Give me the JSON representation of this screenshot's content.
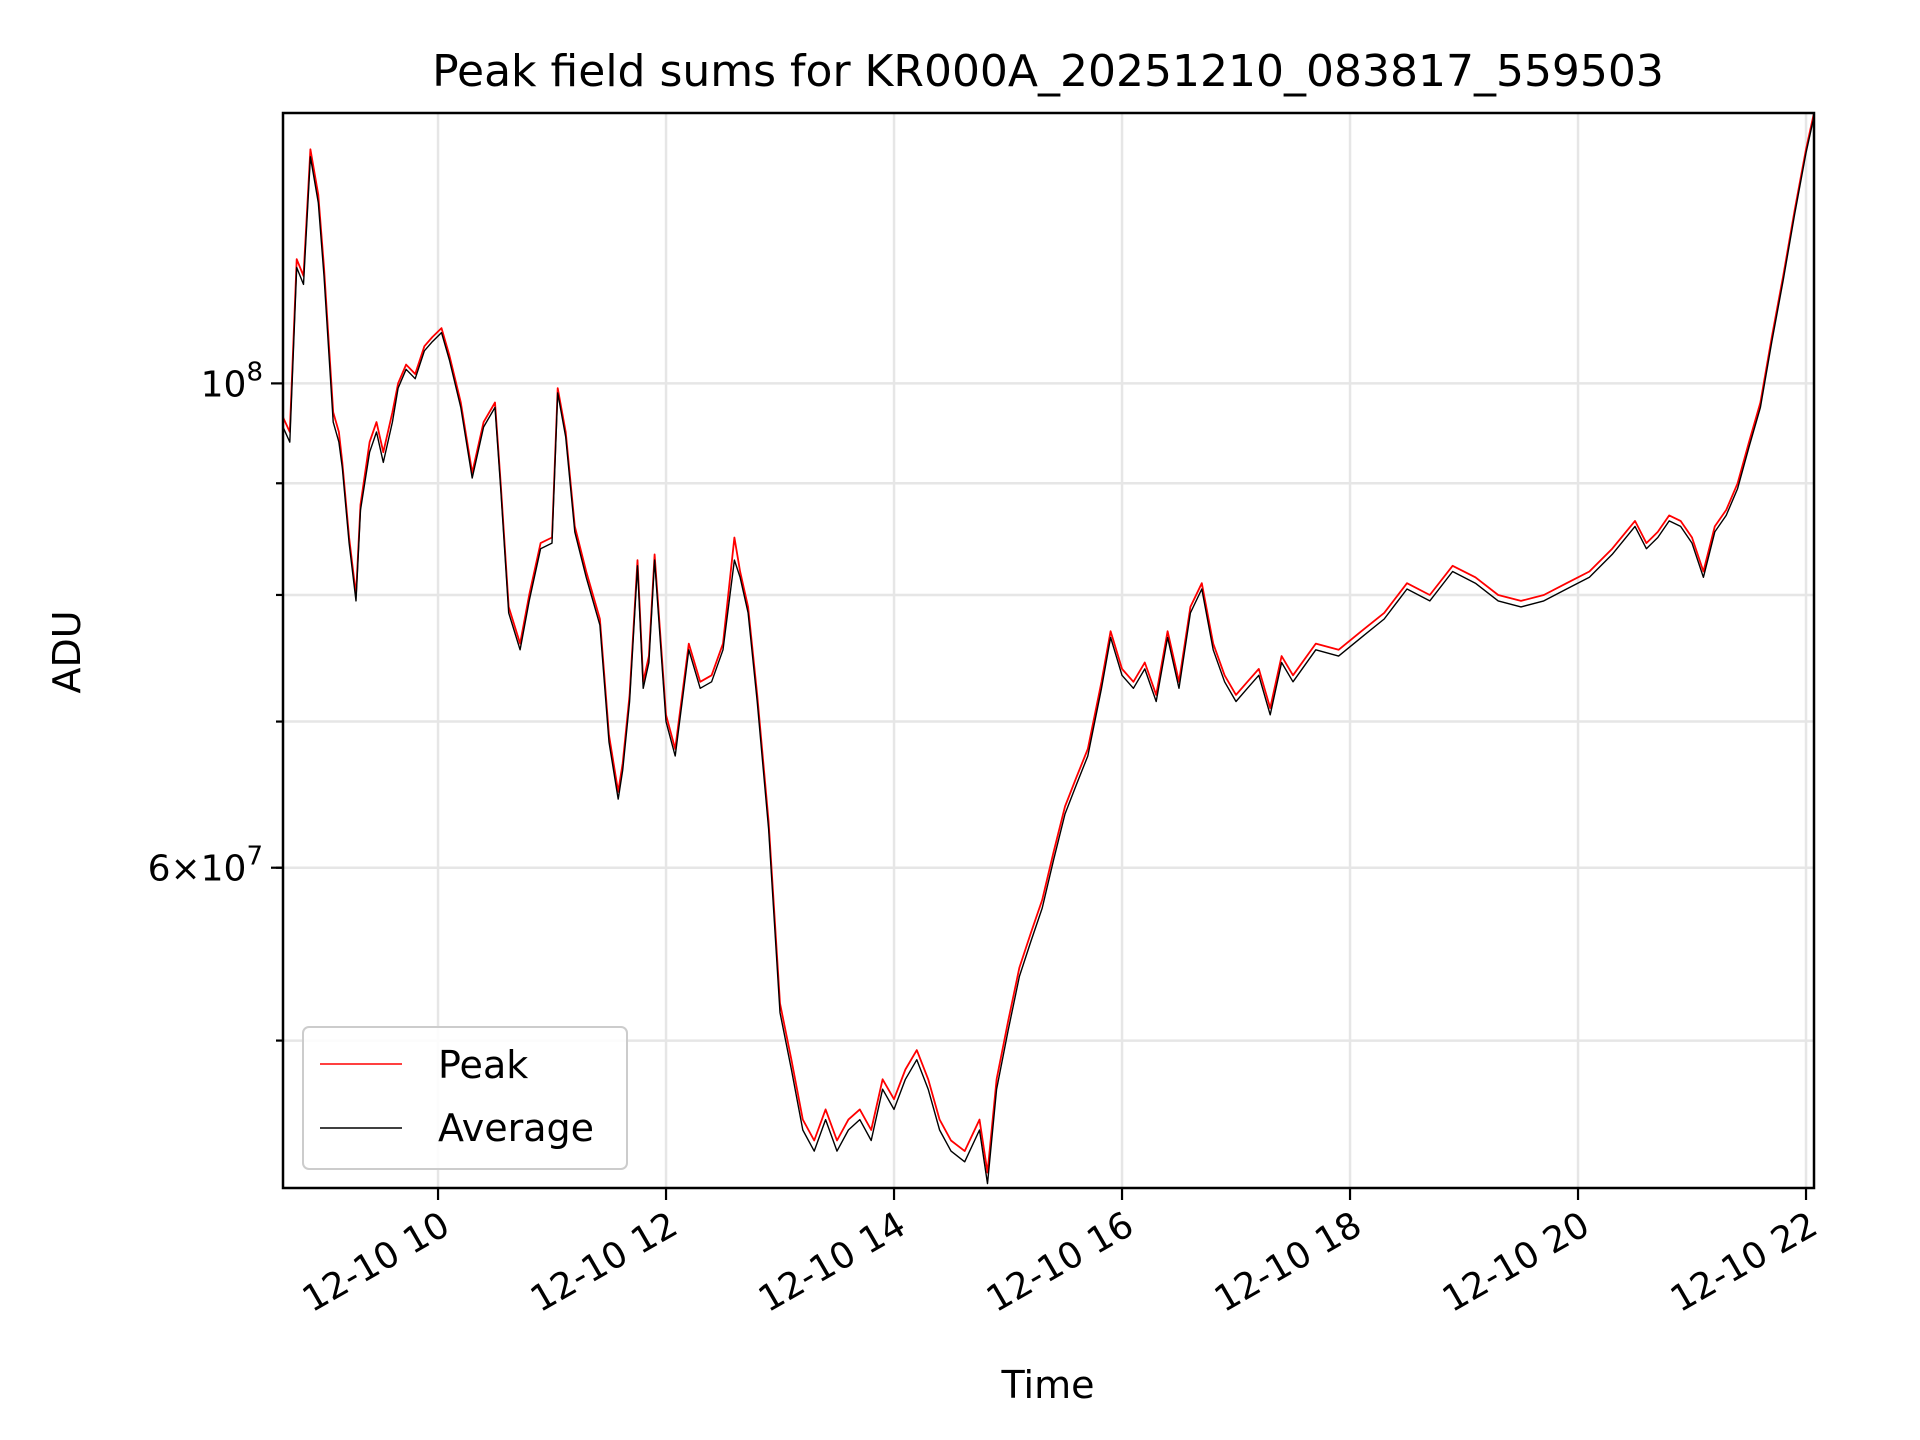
{
  "chart_data": {
    "type": "line",
    "title": "Peak field sums for KR000A_20251210_083817_559503",
    "xlabel": "Time",
    "ylabel": "ADU",
    "yscale": "log",
    "xlim_hours": [
      8.64,
      22.07
    ],
    "ylim": [
      42800000,
      133000000
    ],
    "x_ticks": [
      {
        "hours": 10,
        "label": "12-10 10"
      },
      {
        "hours": 12,
        "label": "12-10 12"
      },
      {
        "hours": 14,
        "label": "12-10 14"
      },
      {
        "hours": 16,
        "label": "12-10 16"
      },
      {
        "hours": 18,
        "label": "12-10 18"
      },
      {
        "hours": 20,
        "label": "12-10 20"
      },
      {
        "hours": 22,
        "label": "12-10 22"
      }
    ],
    "y_major_ticks": [
      {
        "value": 60000000,
        "base": "6×10",
        "exp": "7"
      },
      {
        "value": 100000000,
        "base": "10",
        "exp": "8"
      }
    ],
    "y_minor_ticks": [
      50000000,
      60000000,
      70000000,
      80000000,
      90000000
    ],
    "grid": true,
    "legend_position": "lower-left",
    "series": [
      {
        "name": "Peak",
        "color": "#ff0000",
        "x": [
          8.64,
          8.7,
          8.76,
          8.82,
          8.88,
          8.95,
          9.0,
          9.08,
          9.13,
          9.16,
          9.22,
          9.28,
          9.32,
          9.4,
          9.46,
          9.52,
          9.6,
          9.65,
          9.72,
          9.8,
          9.88,
          9.95,
          10.03,
          10.1,
          10.2,
          10.3,
          10.4,
          10.5,
          10.55,
          10.62,
          10.72,
          10.8,
          10.9,
          11.0,
          11.05,
          11.12,
          11.2,
          11.3,
          11.42,
          11.5,
          11.58,
          11.62,
          11.68,
          11.75,
          11.8,
          11.85,
          11.9,
          12.0,
          12.08,
          12.2,
          12.3,
          12.4,
          12.5,
          12.6,
          12.65,
          12.72,
          12.8,
          12.9,
          13.0,
          13.1,
          13.2,
          13.3,
          13.4,
          13.5,
          13.6,
          13.7,
          13.8,
          13.9,
          14.0,
          14.1,
          14.2,
          14.3,
          14.4,
          14.5,
          14.62,
          14.75,
          14.82,
          14.9,
          15.0,
          15.1,
          15.2,
          15.3,
          15.4,
          15.5,
          15.6,
          15.7,
          15.82,
          15.9,
          16.0,
          16.1,
          16.2,
          16.3,
          16.4,
          16.5,
          16.6,
          16.7,
          16.8,
          16.9,
          17.0,
          17.1,
          17.2,
          17.3,
          17.4,
          17.5,
          17.7,
          17.9,
          18.1,
          18.3,
          18.5,
          18.7,
          18.9,
          19.1,
          19.3,
          19.5,
          19.7,
          19.9,
          20.1,
          20.3,
          20.5,
          20.6,
          20.7,
          20.8,
          20.9,
          21.0,
          21.1,
          21.2,
          21.3,
          21.4,
          21.5,
          21.6,
          21.7,
          21.8,
          21.9,
          22.0,
          22.07
        ],
        "y": [
          96500000,
          95000000,
          114000000,
          112000000,
          128000000,
          122000000,
          113000000,
          97000000,
          95000000,
          92000000,
          85000000,
          80000000,
          88000000,
          94000000,
          96000000,
          93000000,
          97000000,
          100000000,
          102000000,
          101000000,
          104000000,
          105000000,
          106000000,
          103000000,
          98000000,
          91000000,
          96000000,
          98000000,
          90000000,
          79000000,
          76000000,
          80000000,
          84500000,
          85000000,
          99500000,
          95000000,
          86000000,
          82000000,
          78000000,
          69000000,
          65000000,
          67000000,
          72000000,
          83000000,
          73000000,
          75000000,
          83500000,
          70500000,
          68000000,
          76000000,
          73000000,
          73500000,
          76000000,
          85000000,
          82000000,
          79000000,
          72000000,
          63000000,
          52000000,
          49000000,
          46000000,
          45000000,
          46500000,
          45000000,
          46000000,
          46500000,
          45500000,
          48000000,
          47000000,
          48500000,
          49500000,
          48000000,
          46000000,
          45000000,
          44500000,
          46000000,
          43500000,
          48000000,
          51000000,
          54000000,
          56000000,
          58000000,
          61000000,
          64000000,
          66000000,
          68000000,
          73000000,
          77000000,
          74000000,
          73000000,
          74500000,
          72000000,
          77000000,
          73000000,
          79000000,
          81000000,
          76000000,
          73500000,
          72000000,
          73000000,
          74000000,
          71000000,
          75000000,
          73500000,
          76000000,
          75500000,
          77000000,
          78500000,
          81000000,
          80000000,
          82500000,
          81500000,
          80000000,
          79500000,
          80000000,
          81000000,
          82000000,
          84000000,
          86500000,
          84500000,
          85500000,
          87000000,
          86500000,
          85000000,
          82000000,
          86000000,
          87500000,
          90000000,
          94000000,
          98000000,
          105000000,
          112000000,
          120000000,
          128000000,
          133000000
        ]
      },
      {
        "name": "Average",
        "color": "#000000",
        "x": [
          8.64,
          8.7,
          8.76,
          8.82,
          8.88,
          8.95,
          9.0,
          9.08,
          9.13,
          9.16,
          9.22,
          9.28,
          9.32,
          9.4,
          9.46,
          9.52,
          9.6,
          9.65,
          9.72,
          9.8,
          9.88,
          9.95,
          10.03,
          10.1,
          10.2,
          10.3,
          10.4,
          10.5,
          10.55,
          10.62,
          10.72,
          10.8,
          10.9,
          11.0,
          11.05,
          11.12,
          11.2,
          11.3,
          11.42,
          11.5,
          11.58,
          11.62,
          11.68,
          11.75,
          11.8,
          11.85,
          11.9,
          12.0,
          12.08,
          12.2,
          12.3,
          12.4,
          12.5,
          12.6,
          12.65,
          12.72,
          12.8,
          12.9,
          13.0,
          13.1,
          13.2,
          13.3,
          13.4,
          13.5,
          13.6,
          13.7,
          13.8,
          13.9,
          14.0,
          14.1,
          14.2,
          14.3,
          14.4,
          14.5,
          14.62,
          14.75,
          14.82,
          14.9,
          15.0,
          15.1,
          15.2,
          15.3,
          15.4,
          15.5,
          15.6,
          15.7,
          15.82,
          15.9,
          16.0,
          16.1,
          16.2,
          16.3,
          16.4,
          16.5,
          16.6,
          16.7,
          16.8,
          16.9,
          17.0,
          17.1,
          17.2,
          17.3,
          17.4,
          17.5,
          17.7,
          17.9,
          18.1,
          18.3,
          18.5,
          18.7,
          18.9,
          19.1,
          19.3,
          19.5,
          19.7,
          19.9,
          20.1,
          20.3,
          20.5,
          20.6,
          20.7,
          20.8,
          20.9,
          21.0,
          21.1,
          21.2,
          21.3,
          21.4,
          21.5,
          21.6,
          21.7,
          21.8,
          21.9,
          22.0,
          22.07
        ],
        "y": [
          95500000,
          94000000,
          113000000,
          111000000,
          127000000,
          121000000,
          112000000,
          96000000,
          94000000,
          91500000,
          84500000,
          79500000,
          87500000,
          93000000,
          95000000,
          92000000,
          96000000,
          99500000,
          101500000,
          100500000,
          103500000,
          104500000,
          105500000,
          102500000,
          97500000,
          90500000,
          95500000,
          97500000,
          89500000,
          78500000,
          75500000,
          79500000,
          84000000,
          84500000,
          99000000,
          94500000,
          85500000,
          81500000,
          77500000,
          68500000,
          64500000,
          66500000,
          71500000,
          82500000,
          72500000,
          74500000,
          83000000,
          70000000,
          67500000,
          75500000,
          72500000,
          73000000,
          75500000,
          83000000,
          81500000,
          78500000,
          71500000,
          62500000,
          51500000,
          48500000,
          45500000,
          44500000,
          46000000,
          44500000,
          45500000,
          46000000,
          45000000,
          47500000,
          46500000,
          48000000,
          49000000,
          47500000,
          45500000,
          44500000,
          44000000,
          45500000,
          43000000,
          47500000,
          50500000,
          53500000,
          55500000,
          57500000,
          60500000,
          63500000,
          65500000,
          67500000,
          72500000,
          76500000,
          73500000,
          72500000,
          74000000,
          71500000,
          76500000,
          72500000,
          78500000,
          80500000,
          75500000,
          73000000,
          71500000,
          72500000,
          73500000,
          70500000,
          74500000,
          73000000,
          75500000,
          75000000,
          76500000,
          78000000,
          80500000,
          79500000,
          82000000,
          81000000,
          79500000,
          79000000,
          79500000,
          80500000,
          81500000,
          83500000,
          86000000,
          84000000,
          85000000,
          86500000,
          86000000,
          84500000,
          81500000,
          85500000,
          87000000,
          89500000,
          93500000,
          97500000,
          104500000,
          111500000,
          119500000,
          127500000,
          132500000
        ]
      }
    ]
  }
}
